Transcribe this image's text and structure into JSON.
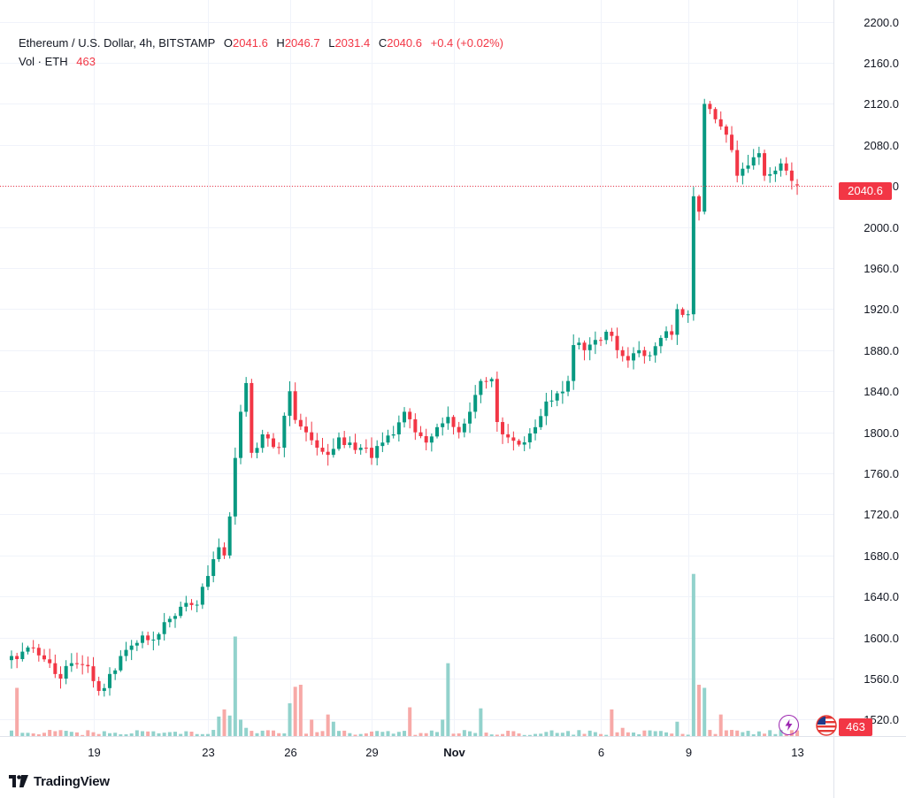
{
  "legend": {
    "symbol": "Ethereum / U.S. Dollar, 4h, BITSTAMP",
    "open_label": "O",
    "open": "2041.6",
    "high_label": "H",
    "high": "2046.7",
    "low_label": "L",
    "low": "2031.4",
    "close_label": "C",
    "close": "2040.6",
    "change": "+0.4 (+0.02%)",
    "volume_label": "Vol · ETH",
    "volume": "463"
  },
  "price_badge": "2040.6",
  "volume_badge": "463",
  "brand": "TradingView",
  "colors": {
    "up": "#089981",
    "down": "#f23645",
    "up_volume": "#92d2cc",
    "down_volume": "#f7a9a7",
    "grid": "#f0f3fa",
    "text": "#131722"
  },
  "icons": [
    "tradingview-logo-icon",
    "lightning-icon",
    "us-flag-icon"
  ],
  "chart_data": {
    "type": "candlestick",
    "y_ticks": [
      "2200.0",
      "2160.0",
      "2120.0",
      "2080.0",
      "2040.0",
      "2000.0",
      "1960.0",
      "1920.0",
      "1880.0",
      "1840.0",
      "1800.0",
      "1760.0",
      "1720.0",
      "1680.0",
      "1640.0",
      "1600.0",
      "1560.0",
      "1520.0"
    ],
    "y_range": [
      1504,
      2204
    ],
    "x_ticks": [
      {
        "label": "19",
        "bar": 15,
        "bold": false
      },
      {
        "label": "23",
        "bar": 36,
        "bold": false
      },
      {
        "label": "26",
        "bar": 51,
        "bold": false
      },
      {
        "label": "29",
        "bar": 66,
        "bold": false
      },
      {
        "label": "Nov",
        "bar": 81,
        "bold": true
      },
      {
        "label": "6",
        "bar": 108,
        "bold": false
      },
      {
        "label": "9",
        "bar": 124,
        "bold": false
      },
      {
        "label": "13",
        "bar": 144,
        "bold": false
      }
    ],
    "last_price": 2040.6,
    "series": [
      {
        "name": "Price",
        "anchors": [
          [
            0,
            1582
          ],
          [
            4,
            1590
          ],
          [
            7,
            1575
          ],
          [
            9,
            1560
          ],
          [
            11,
            1575
          ],
          [
            14,
            1572
          ],
          [
            16,
            1548
          ],
          [
            19,
            1568
          ],
          [
            21,
            1588
          ],
          [
            24,
            1602
          ],
          [
            26,
            1598
          ],
          [
            28,
            1615
          ],
          [
            31,
            1630
          ],
          [
            34,
            1632
          ],
          [
            36,
            1660
          ],
          [
            38,
            1688
          ],
          [
            39,
            1680
          ],
          [
            40,
            1718
          ],
          [
            41,
            1775
          ],
          [
            42,
            1820
          ],
          [
            43,
            1848
          ],
          [
            44,
            1780
          ],
          [
            46,
            1798
          ],
          [
            49,
            1785
          ],
          [
            51,
            1840
          ],
          [
            52,
            1812
          ],
          [
            54,
            1800
          ],
          [
            56,
            1785
          ],
          [
            58,
            1778
          ],
          [
            60,
            1795
          ],
          [
            62,
            1790
          ],
          [
            64,
            1785
          ],
          [
            66,
            1775
          ],
          [
            68,
            1790
          ],
          [
            70,
            1798
          ],
          [
            72,
            1820
          ],
          [
            74,
            1800
          ],
          [
            76,
            1790
          ],
          [
            78,
            1805
          ],
          [
            80,
            1815
          ],
          [
            82,
            1800
          ],
          [
            84,
            1820
          ],
          [
            86,
            1850
          ],
          [
            88,
            1852
          ],
          [
            89,
            1810
          ],
          [
            91,
            1795
          ],
          [
            93,
            1788
          ],
          [
            96,
            1805
          ],
          [
            98,
            1830
          ],
          [
            100,
            1838
          ],
          [
            102,
            1850
          ],
          [
            103,
            1885
          ],
          [
            105,
            1880
          ],
          [
            107,
            1890
          ],
          [
            109,
            1898
          ],
          [
            111,
            1880
          ],
          [
            113,
            1870
          ],
          [
            115,
            1880
          ],
          [
            117,
            1875
          ],
          [
            119,
            1892
          ],
          [
            121,
            1895
          ],
          [
            122,
            1920
          ],
          [
            124,
            1915
          ],
          [
            125,
            2030
          ],
          [
            126,
            2015
          ],
          [
            127,
            2120
          ],
          [
            128,
            2115
          ],
          [
            129,
            2105
          ],
          [
            130,
            2098
          ],
          [
            131,
            2090
          ],
          [
            132,
            2075
          ],
          [
            133,
            2050
          ],
          [
            135,
            2060
          ],
          [
            136,
            2068
          ],
          [
            137,
            2072
          ],
          [
            138,
            2050
          ],
          [
            140,
            2055
          ],
          [
            141,
            2062
          ],
          [
            142,
            2055
          ],
          [
            143,
            2045
          ],
          [
            144,
            2040.6
          ]
        ]
      }
    ],
    "volume_spikes": [
      [
        1,
        1551
      ],
      [
        7,
        1510
      ],
      [
        36,
        1506
      ],
      [
        37,
        1510
      ],
      [
        38,
        1523
      ],
      [
        39,
        1530
      ],
      [
        40,
        1524
      ],
      [
        41,
        1601
      ],
      [
        42,
        1520
      ],
      [
        43,
        1512
      ],
      [
        51,
        1536
      ],
      [
        52,
        1552
      ],
      [
        53,
        1554
      ],
      [
        55,
        1520
      ],
      [
        58,
        1525
      ],
      [
        59,
        1518
      ],
      [
        73,
        1532
      ],
      [
        79,
        1520
      ],
      [
        80,
        1575
      ],
      [
        86,
        1531
      ],
      [
        110,
        1530
      ],
      [
        112,
        1512
      ],
      [
        122,
        1518
      ],
      [
        125,
        1662
      ],
      [
        126,
        1554
      ],
      [
        127,
        1551
      ],
      [
        130,
        1525
      ],
      [
        132,
        1510
      ]
    ]
  }
}
